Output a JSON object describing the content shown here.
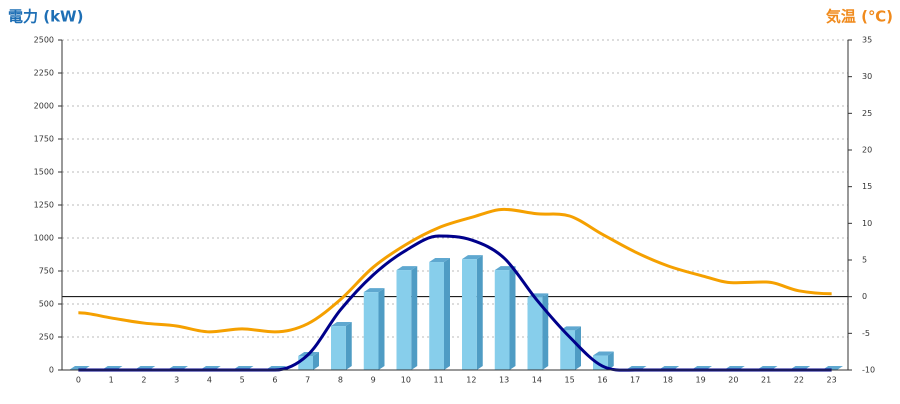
{
  "chart_data": {
    "type": "bar-line",
    "y_label": "電力 (kW)",
    "y2_label": "気温 (℃)",
    "categories": [
      "0",
      "1",
      "2",
      "3",
      "4",
      "5",
      "6",
      "7",
      "8",
      "9",
      "10",
      "11",
      "12",
      "13",
      "14",
      "15",
      "16",
      "17",
      "18",
      "19",
      "20",
      "21",
      "22",
      "23"
    ],
    "series": [
      {
        "type": "bar",
        "color": "#87ceeb",
        "values": [
          0,
          0,
          0,
          0,
          0,
          0,
          0,
          106,
          333,
          590,
          757,
          818,
          840,
          757,
          550,
          300,
          110,
          0,
          0,
          0,
          0,
          0,
          0,
          0
        ]
      },
      {
        "type": "line",
        "color": "#00008b",
        "values": [
          0,
          0,
          0,
          0,
          0,
          0,
          0,
          113,
          455,
          720,
          906,
          1015,
          985,
          848,
          530,
          250,
          30,
          0,
          0,
          0,
          0,
          0,
          0,
          0
        ]
      },
      {
        "type": "line",
        "axis": "y2",
        "color": "#f5a000",
        "values": [
          -2.2,
          -2.9,
          -3.6,
          -4.0,
          -4.8,
          -4.4,
          -4.8,
          -3.7,
          -0.4,
          4.0,
          7.1,
          9.4,
          10.8,
          11.9,
          11.3,
          11.0,
          8.5,
          6.1,
          4.2,
          2.9,
          1.9,
          2.0,
          0.8,
          0.4
        ]
      }
    ],
    "ylim": [
      0,
      2500
    ],
    "yticks": [
      0,
      250,
      500,
      750,
      1000,
      1250,
      1500,
      1750,
      2000,
      2250,
      2500
    ],
    "y2lim": [
      -10,
      35
    ],
    "y2ticks": [
      -10,
      -5,
      0,
      5,
      10,
      15,
      20,
      25,
      30,
      35
    ],
    "grid": true
  }
}
